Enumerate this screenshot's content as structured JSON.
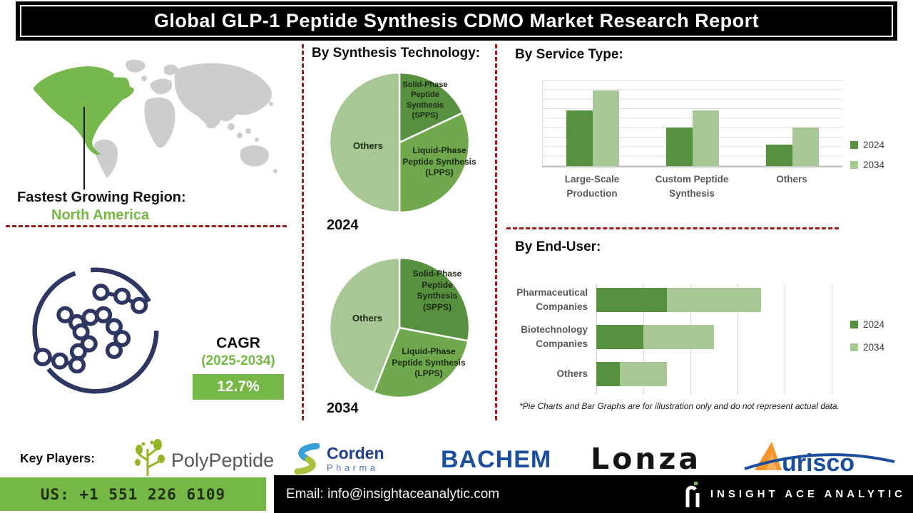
{
  "header": {
    "title": "Global GLP-1 Peptide Synthesis CDMO Market Research Report"
  },
  "region": {
    "label": "Fastest Growing Region:",
    "value": "North America"
  },
  "cagr": {
    "label": "CAGR",
    "period": "(2025-2034)",
    "value": "12.7%"
  },
  "sections": {
    "synthesis": "By Synthesis Technology:",
    "service": "By Service Type:",
    "end_user": "By End-User:"
  },
  "note": "*Pie Charts and Bar Graphs are for illustration only and do not represent actual data.",
  "key_players": {
    "label": "Key Players:",
    "polypeptide": "PolyPeptide",
    "corden_line1": "Corden",
    "corden_line2": "Pharma",
    "bachem": "BACHEM",
    "lonza": "Lonza",
    "aurisco": "urisco"
  },
  "footer": {
    "phone": "US: +1 551 226 6109",
    "email": "Email: info@insightaceanalytic.com",
    "brand": "INSIGHT ACE ANALYTIC"
  },
  "colors": {
    "green_dark": "#579140",
    "green_mid": "#6fa84d",
    "green_light": "#a7c794",
    "accent_green": "#76b845",
    "dashed_red": "#a01d1d",
    "navy": "#2d3761",
    "map_gray": "#cdcdcd",
    "logo_blue": "#1b4f9e",
    "logo_orange": "#f5952b"
  },
  "chart_data": [
    {
      "type": "pie",
      "title": "By Synthesis Technology: 2024",
      "year": "2024",
      "labels": [
        "Solid-Phase Peptide Synthesis (SPPS)",
        "Liquid-Phase Peptide Synthesis (LPPS)",
        "Others"
      ],
      "values": [
        18,
        32,
        50
      ],
      "unit": "percent (illustrative)",
      "colors": [
        "#579140",
        "#6fa84d",
        "#a7c794"
      ],
      "start_angle": "top, clockwise"
    },
    {
      "type": "pie",
      "title": "By Synthesis Technology: 2034",
      "year": "2034",
      "labels": [
        "Solid-Phase Peptide Synthesis (SPPS)",
        "Liquid-Phase Peptide Synthesis (LPPS)",
        "Others"
      ],
      "values": [
        28,
        28,
        44
      ],
      "unit": "percent (illustrative)",
      "colors": [
        "#579140",
        "#6fa84d",
        "#a7c794"
      ],
      "start_angle": "top, clockwise"
    },
    {
      "type": "bar",
      "title": "By Service Type:",
      "categories": [
        "Large-Scale Production",
        "Custom Peptide Synthesis",
        "Others"
      ],
      "series": [
        {
          "name": "2024",
          "color": "#579140",
          "values": [
            65,
            45,
            25
          ]
        },
        {
          "name": "2034",
          "color": "#a7c794",
          "values": [
            88,
            65,
            45
          ]
        }
      ],
      "ylim": [
        0,
        100
      ],
      "ylabel": "",
      "xlabel": "",
      "grid": "horizontal",
      "legend_position": "right",
      "values_are_illustrative": true
    },
    {
      "type": "bar",
      "orientation": "horizontal",
      "stacked": true,
      "title": "By End-User:",
      "categories": [
        "Pharmaceutical Companies",
        "Biotechnology Companies",
        "Others"
      ],
      "series": [
        {
          "name": "2024",
          "color": "#579140",
          "values": [
            30,
            20,
            10
          ]
        },
        {
          "name": "2034",
          "color": "#a7c794",
          "values": [
            40,
            30,
            20
          ]
        }
      ],
      "xlim": [
        0,
        100
      ],
      "grid": "vertical",
      "legend_position": "right",
      "values_are_illustrative": true
    }
  ]
}
